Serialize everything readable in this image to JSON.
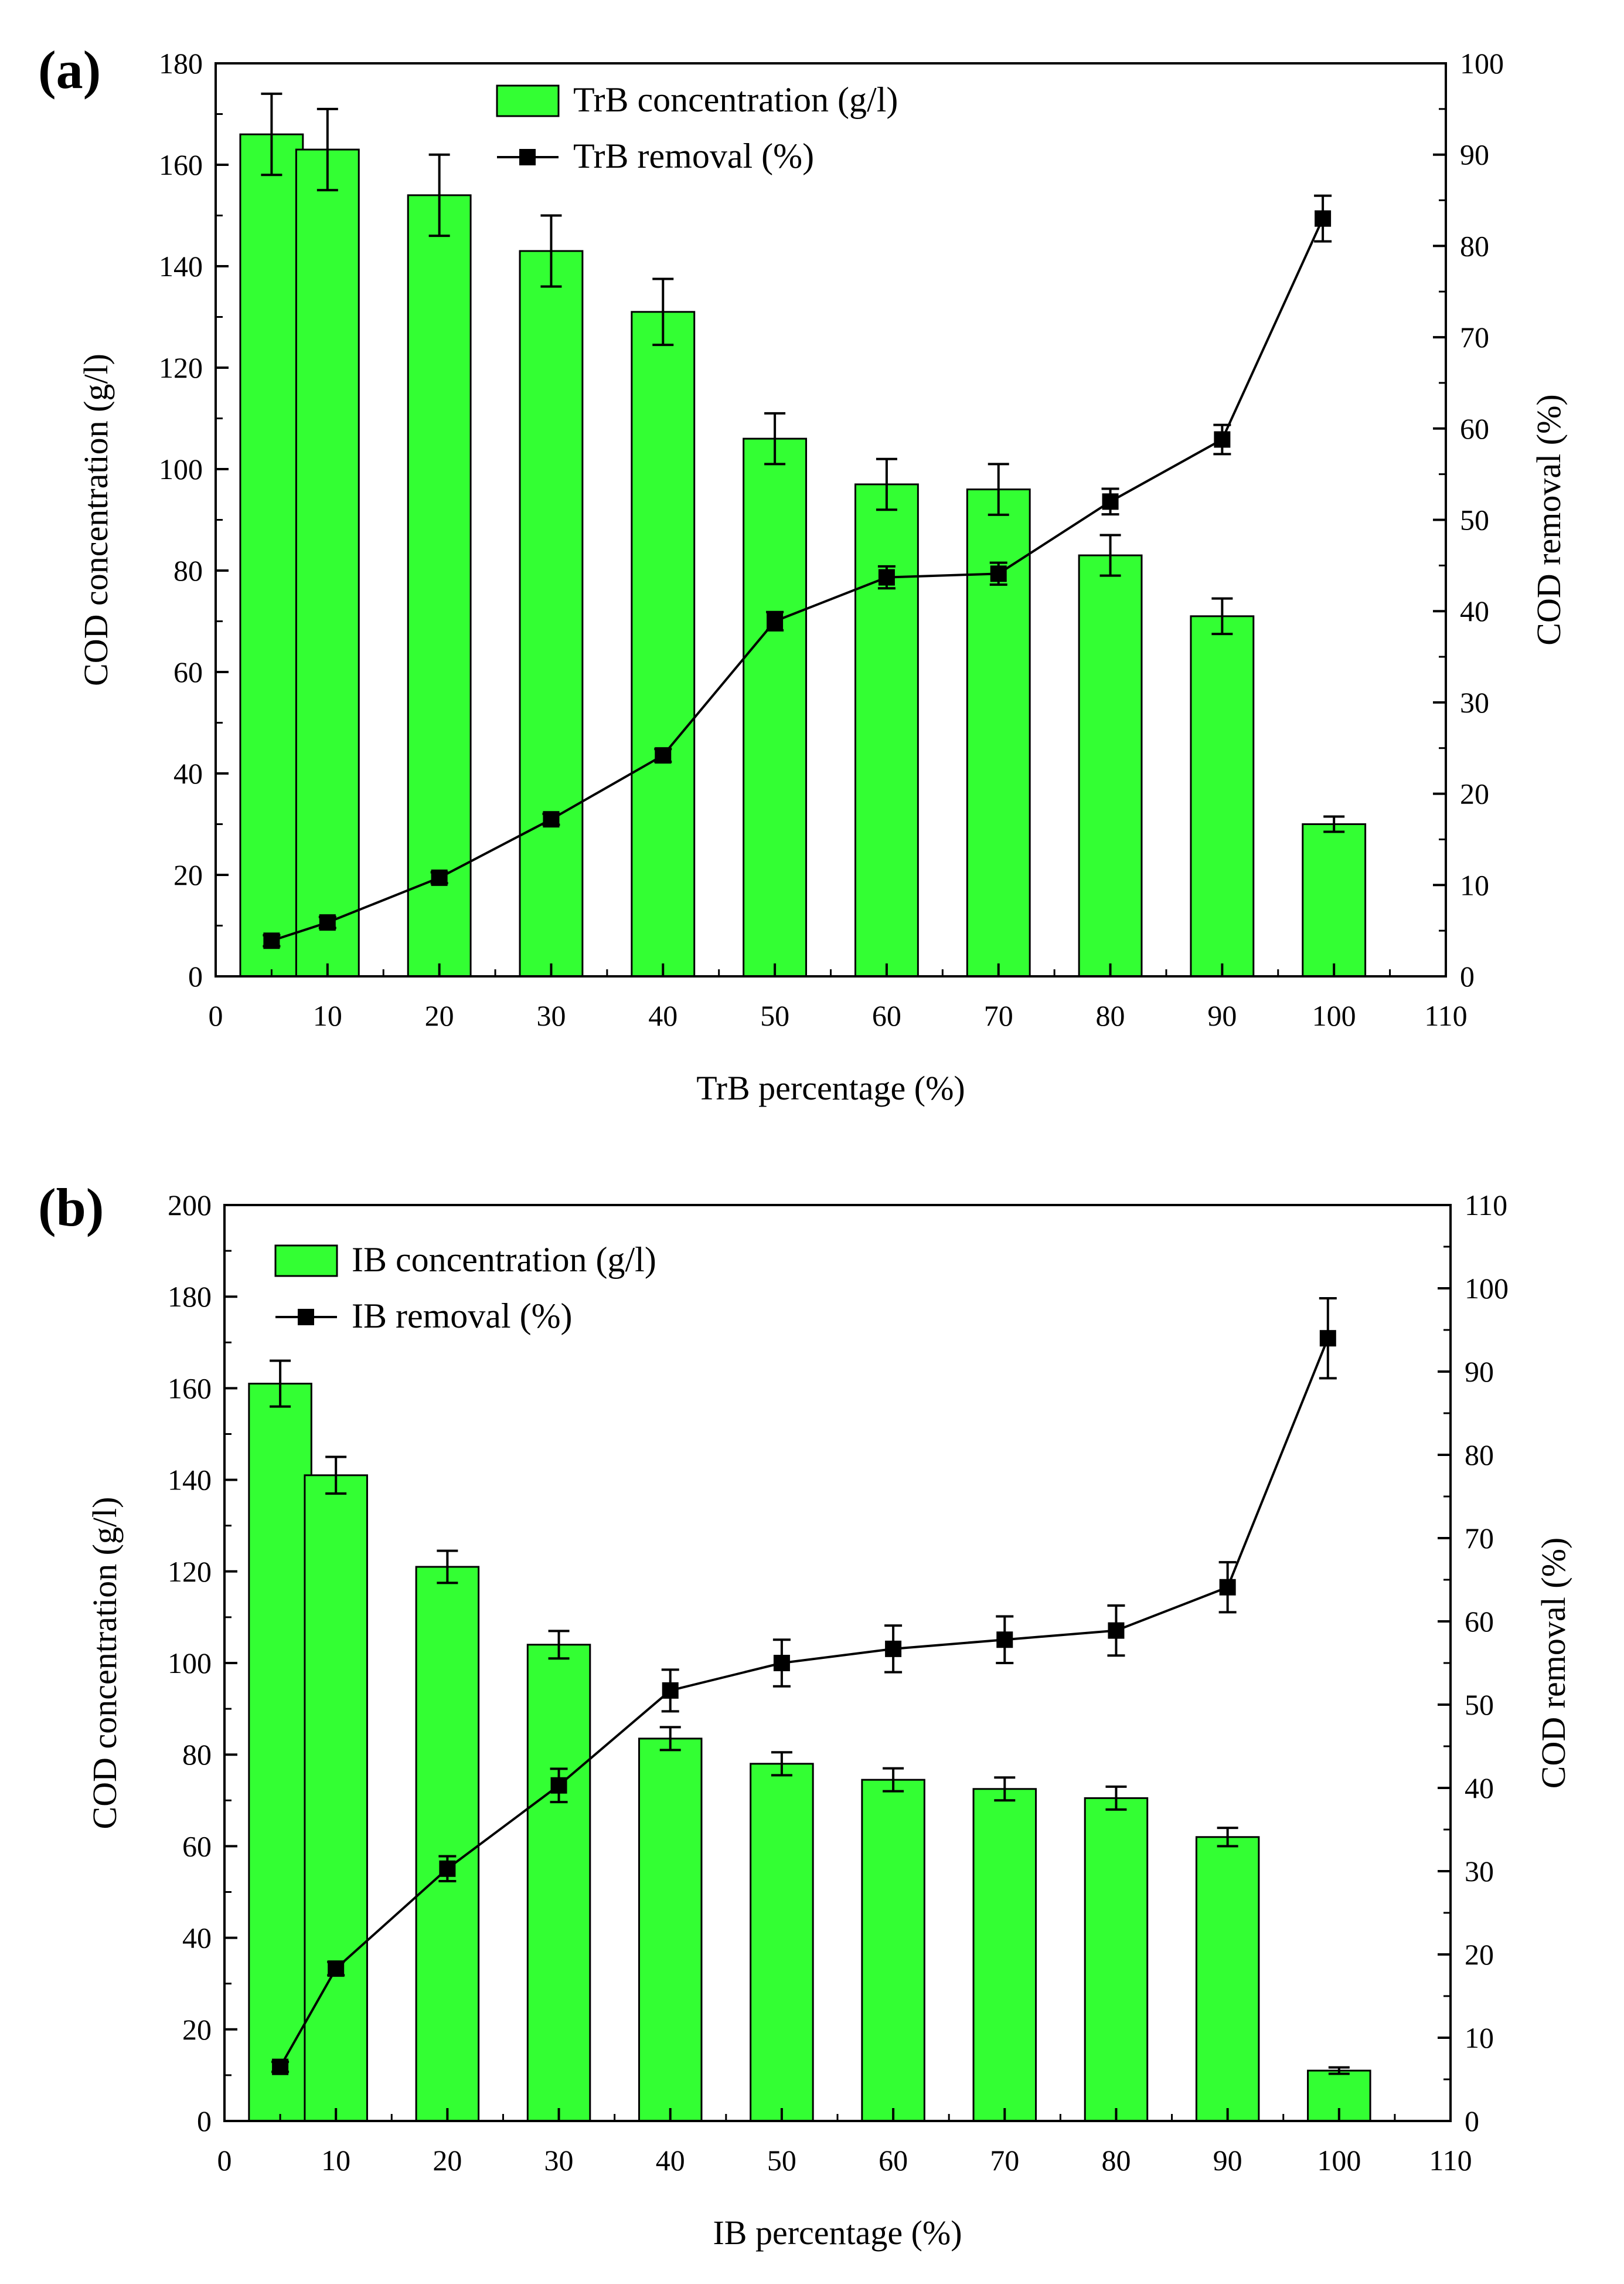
{
  "chart_data": [
    {
      "type": "bar",
      "panel_label": "(a)",
      "xlabel": "TrB percentage (%)",
      "ylabel": "COD concentration (g/l)",
      "y2label": "COD removal (%)",
      "xlim": [
        0,
        110
      ],
      "ylim": [
        0,
        180
      ],
      "y2lim": [
        0,
        100
      ],
      "xticks": [
        "0",
        "10",
        "20",
        "30",
        "40",
        "50",
        "60",
        "70",
        "80",
        "90",
        "100",
        "110"
      ],
      "yticks": [
        "0",
        "20",
        "40",
        "60",
        "80",
        "100",
        "120",
        "140",
        "160",
        "180"
      ],
      "y2ticks": [
        "0",
        "10",
        "20",
        "30",
        "40",
        "50",
        "60",
        "70",
        "80",
        "90",
        "100"
      ],
      "legend_position": "top-center",
      "bars": {
        "name": "TrB concentration (g/l)",
        "color": "#33ff33",
        "x": [
          5,
          10,
          20,
          30,
          40,
          50,
          60,
          70,
          80,
          90,
          100
        ],
        "values": [
          166,
          163,
          154,
          143,
          131,
          106,
          97,
          96,
          83,
          71,
          30
        ],
        "errors": [
          8,
          8,
          8,
          7,
          6.5,
          5,
          5,
          5,
          4,
          3.5,
          1.5
        ]
      },
      "line": {
        "name": "TrB removal (%)",
        "color": "#000000",
        "x": [
          5,
          10,
          20,
          30,
          40,
          50,
          60,
          70,
          80,
          90,
          99
        ],
        "values": [
          3.9,
          5.9,
          10.8,
          17.2,
          24.2,
          38.9,
          43.7,
          44.1,
          52.0,
          58.8,
          83.0
        ],
        "errors": [
          0.6,
          0.6,
          0.6,
          0.6,
          0.7,
          1.0,
          1.2,
          1.2,
          1.4,
          1.6,
          2.5
        ]
      }
    },
    {
      "type": "bar",
      "panel_label": "(b)",
      "xlabel": "IB percentage (%)",
      "ylabel": "COD concentration (g/l)",
      "y2label": "COD removal (%)",
      "xlim": [
        0,
        110
      ],
      "ylim": [
        0,
        200
      ],
      "y2lim": [
        0,
        110
      ],
      "xticks": [
        "0",
        "10",
        "20",
        "30",
        "40",
        "50",
        "60",
        "70",
        "80",
        "90",
        "100",
        "110"
      ],
      "yticks": [
        "0",
        "20",
        "40",
        "60",
        "80",
        "100",
        "120",
        "140",
        "160",
        "180",
        "200"
      ],
      "y2ticks": [
        "0",
        "10",
        "20",
        "30",
        "40",
        "50",
        "60",
        "70",
        "80",
        "90",
        "100",
        "110"
      ],
      "legend_position": "top-left",
      "bars": {
        "name": "IB concentration (g/l)",
        "color": "#33ff33",
        "x": [
          5,
          10,
          20,
          30,
          40,
          50,
          60,
          70,
          80,
          90,
          100
        ],
        "values": [
          161,
          141,
          121,
          104,
          83.5,
          78,
          74.5,
          72.5,
          70.5,
          62,
          11
        ],
        "errors": [
          5,
          4,
          3.5,
          3,
          2.5,
          2.5,
          2.5,
          2.5,
          2.5,
          2,
          0.7
        ]
      },
      "line": {
        "name": "IB removal (%)",
        "color": "#000000",
        "x": [
          5,
          10,
          20,
          30,
          40,
          50,
          60,
          70,
          80,
          90,
          99
        ],
        "values": [
          6.5,
          18.3,
          30.3,
          40.3,
          51.7,
          55.0,
          56.7,
          57.8,
          58.9,
          64.1,
          94.0
        ],
        "errors": [
          0.6,
          0.8,
          1.5,
          2.0,
          2.5,
          2.8,
          2.8,
          2.8,
          3.0,
          3.0,
          4.8
        ]
      }
    }
  ]
}
